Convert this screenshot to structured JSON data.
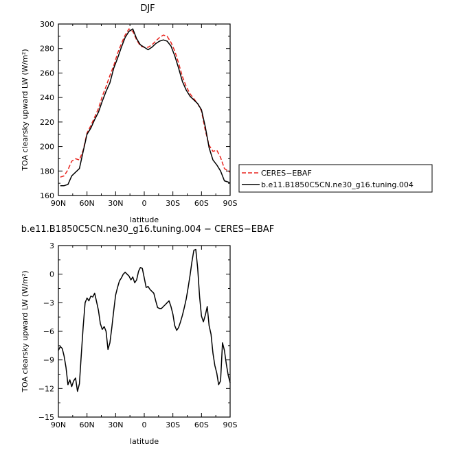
{
  "chart_data": [
    {
      "type": "line",
      "title": "DJF",
      "xlabel": "latitude",
      "ylabel": "TOA clearsky upward LW (W/m²)",
      "xlim": [
        -90,
        90
      ],
      "ylim": [
        160,
        300
      ],
      "xticks": [
        -90,
        -60,
        -30,
        0,
        30,
        60,
        90
      ],
      "xtick_labels": [
        "90N",
        "60N",
        "30N",
        "0",
        "30S",
        "60S",
        "90S"
      ],
      "yticks": [
        160,
        180,
        200,
        220,
        240,
        260,
        280,
        300
      ],
      "ytick_labels": [
        "160",
        "180",
        "200",
        "220",
        "240",
        "260",
        "280",
        "300"
      ],
      "grid": false,
      "legend_position": "outside-right",
      "series": [
        {
          "name": "CERES−EBAF",
          "color": "#e8231d",
          "dash": "dashed",
          "x": [
            -88,
            -84,
            -80,
            -76,
            -72,
            -68,
            -64,
            -60,
            -56,
            -52,
            -48,
            -44,
            -40,
            -36,
            -32,
            -28,
            -24,
            -20,
            -16,
            -12,
            -8,
            -4,
            0,
            4,
            8,
            12,
            16,
            20,
            24,
            28,
            32,
            36,
            40,
            44,
            48,
            52,
            56,
            60,
            64,
            68,
            72,
            76,
            80,
            84,
            88,
            90
          ],
          "y": [
            175,
            176,
            181,
            188,
            190,
            189,
            197,
            211,
            217,
            224,
            231,
            241,
            249,
            258,
            266,
            276,
            284,
            291,
            296,
            294,
            287,
            282,
            281,
            281,
            283,
            286,
            289,
            291,
            290,
            285,
            278,
            268,
            257,
            249,
            243,
            239,
            235,
            229,
            213,
            201,
            196,
            197,
            191,
            182,
            180,
            179
          ]
        },
        {
          "name": "b.e11.B1850C5CN.ne30_g16.tuning.004",
          "color": "#000000",
          "dash": "solid",
          "x": [
            -88,
            -84,
            -80,
            -76,
            -72,
            -68,
            -64,
            -60,
            -56,
            -52,
            -48,
            -44,
            -40,
            -36,
            -32,
            -28,
            -24,
            -20,
            -16,
            -12,
            -8,
            -4,
            0,
            4,
            8,
            12,
            16,
            20,
            24,
            28,
            32,
            36,
            40,
            44,
            48,
            52,
            56,
            60,
            64,
            68,
            72,
            76,
            80,
            84,
            88,
            90
          ],
          "y": [
            168,
            168,
            169,
            176,
            179,
            182,
            196,
            210,
            215,
            222,
            228,
            237,
            245,
            252,
            264,
            272,
            281,
            289,
            294,
            296,
            288,
            283,
            281,
            279,
            281,
            284,
            286,
            287,
            286,
            282,
            274,
            264,
            253,
            246,
            241,
            238,
            235,
            230,
            216,
            199,
            189,
            185,
            180,
            172,
            171,
            170
          ]
        }
      ]
    },
    {
      "type": "line",
      "title": "b.e11.B1850C5CN.ne30_g16.tuning.004 − CERES−EBAF",
      "xlabel": "latitude",
      "ylabel": "TOA clearsky upward LW (W/m²)",
      "xlim": [
        -90,
        90
      ],
      "ylim": [
        -15,
        3
      ],
      "xticks": [
        -90,
        -60,
        -30,
        0,
        30,
        60,
        90
      ],
      "xtick_labels": [
        "90N",
        "60N",
        "30N",
        "0",
        "30S",
        "60S",
        "90S"
      ],
      "yticks": [
        -15,
        -12,
        -9,
        -6,
        -3,
        0,
        3
      ],
      "ytick_labels": [
        "−15",
        "−12",
        "−9",
        "−6",
        "−3",
        "0",
        "3"
      ],
      "grid": false,
      "series": [
        {
          "color": "#000000",
          "dash": "solid",
          "x": [
            -90,
            -88,
            -86,
            -84,
            -82,
            -80,
            -78,
            -76,
            -74,
            -72,
            -70,
            -68,
            -66,
            -64,
            -62,
            -60,
            -58,
            -56,
            -54,
            -52,
            -50,
            -48,
            -46,
            -44,
            -42,
            -40,
            -38,
            -36,
            -34,
            -32,
            -30,
            -28,
            -26,
            -24,
            -22,
            -20,
            -18,
            -16,
            -14,
            -12,
            -10,
            -8,
            -6,
            -4,
            -2,
            0,
            2,
            4,
            6,
            8,
            10,
            12,
            14,
            16,
            18,
            20,
            22,
            24,
            26,
            28,
            30,
            32,
            34,
            36,
            38,
            40,
            42,
            44,
            46,
            48,
            50,
            52,
            54,
            56,
            58,
            60,
            62,
            64,
            66,
            68,
            70,
            72,
            74,
            76,
            78,
            80,
            82,
            84,
            86,
            88,
            90
          ],
          "y": [
            -8.0,
            -7.6,
            -7.8,
            -8.6,
            -9.8,
            -11.6,
            -11.1,
            -11.8,
            -11.2,
            -10.9,
            -12.3,
            -11.5,
            -8.5,
            -5.5,
            -3.0,
            -2.5,
            -2.8,
            -2.3,
            -2.4,
            -2.0,
            -2.9,
            -3.8,
            -5.2,
            -5.8,
            -5.5,
            -6.0,
            -7.9,
            -7.2,
            -5.6,
            -3.8,
            -2.2,
            -1.4,
            -0.7,
            -0.4,
            0.0,
            0.2,
            0.0,
            -0.2,
            -0.6,
            -0.3,
            -0.9,
            -0.6,
            0.3,
            0.7,
            0.6,
            -0.4,
            -1.4,
            -1.3,
            -1.6,
            -1.8,
            -2.0,
            -2.8,
            -3.5,
            -3.6,
            -3.6,
            -3.4,
            -3.2,
            -3.0,
            -2.8,
            -3.4,
            -4.2,
            -5.4,
            -5.9,
            -5.6,
            -5.0,
            -4.3,
            -3.5,
            -2.6,
            -1.4,
            -0.1,
            1.3,
            2.5,
            2.6,
            0.6,
            -2.4,
            -4.4,
            -5.0,
            -4.3,
            -3.4,
            -5.4,
            -6.3,
            -8.3,
            -9.6,
            -10.4,
            -11.6,
            -11.2,
            -7.2,
            -8.0,
            -9.4,
            -10.6,
            -11.4
          ]
        }
      ]
    }
  ]
}
